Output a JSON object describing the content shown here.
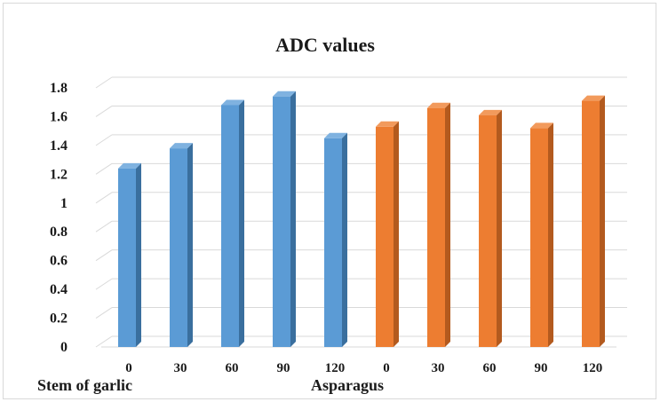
{
  "chart_data": {
    "type": "bar",
    "title": "ADC values",
    "xlabel": "",
    "ylabel": "",
    "ylim": [
      0,
      1.8
    ],
    "yticks": [
      "0",
      "0.2",
      "0.4",
      "0.6",
      "0.8",
      "1",
      "1.2",
      "1.4",
      "1.6",
      "1.8"
    ],
    "grid": true,
    "legend": "none",
    "categories": [
      "0",
      "30",
      "60",
      "90",
      "120",
      "0",
      "30",
      "60",
      "90",
      "120"
    ],
    "values": [
      1.24,
      1.38,
      1.68,
      1.74,
      1.45,
      1.53,
      1.66,
      1.61,
      1.52,
      1.71
    ],
    "groups": [
      {
        "name": "Stem of garlic",
        "start": 0,
        "end": 4,
        "color": "#5B9BD5",
        "side": "#3A6F9E",
        "top": "#7FB2E0"
      },
      {
        "name": "Asparagus",
        "start": 5,
        "end": 9,
        "color": "#ED7D31",
        "side": "#B35A1E",
        "top": "#F29A5C"
      }
    ]
  }
}
